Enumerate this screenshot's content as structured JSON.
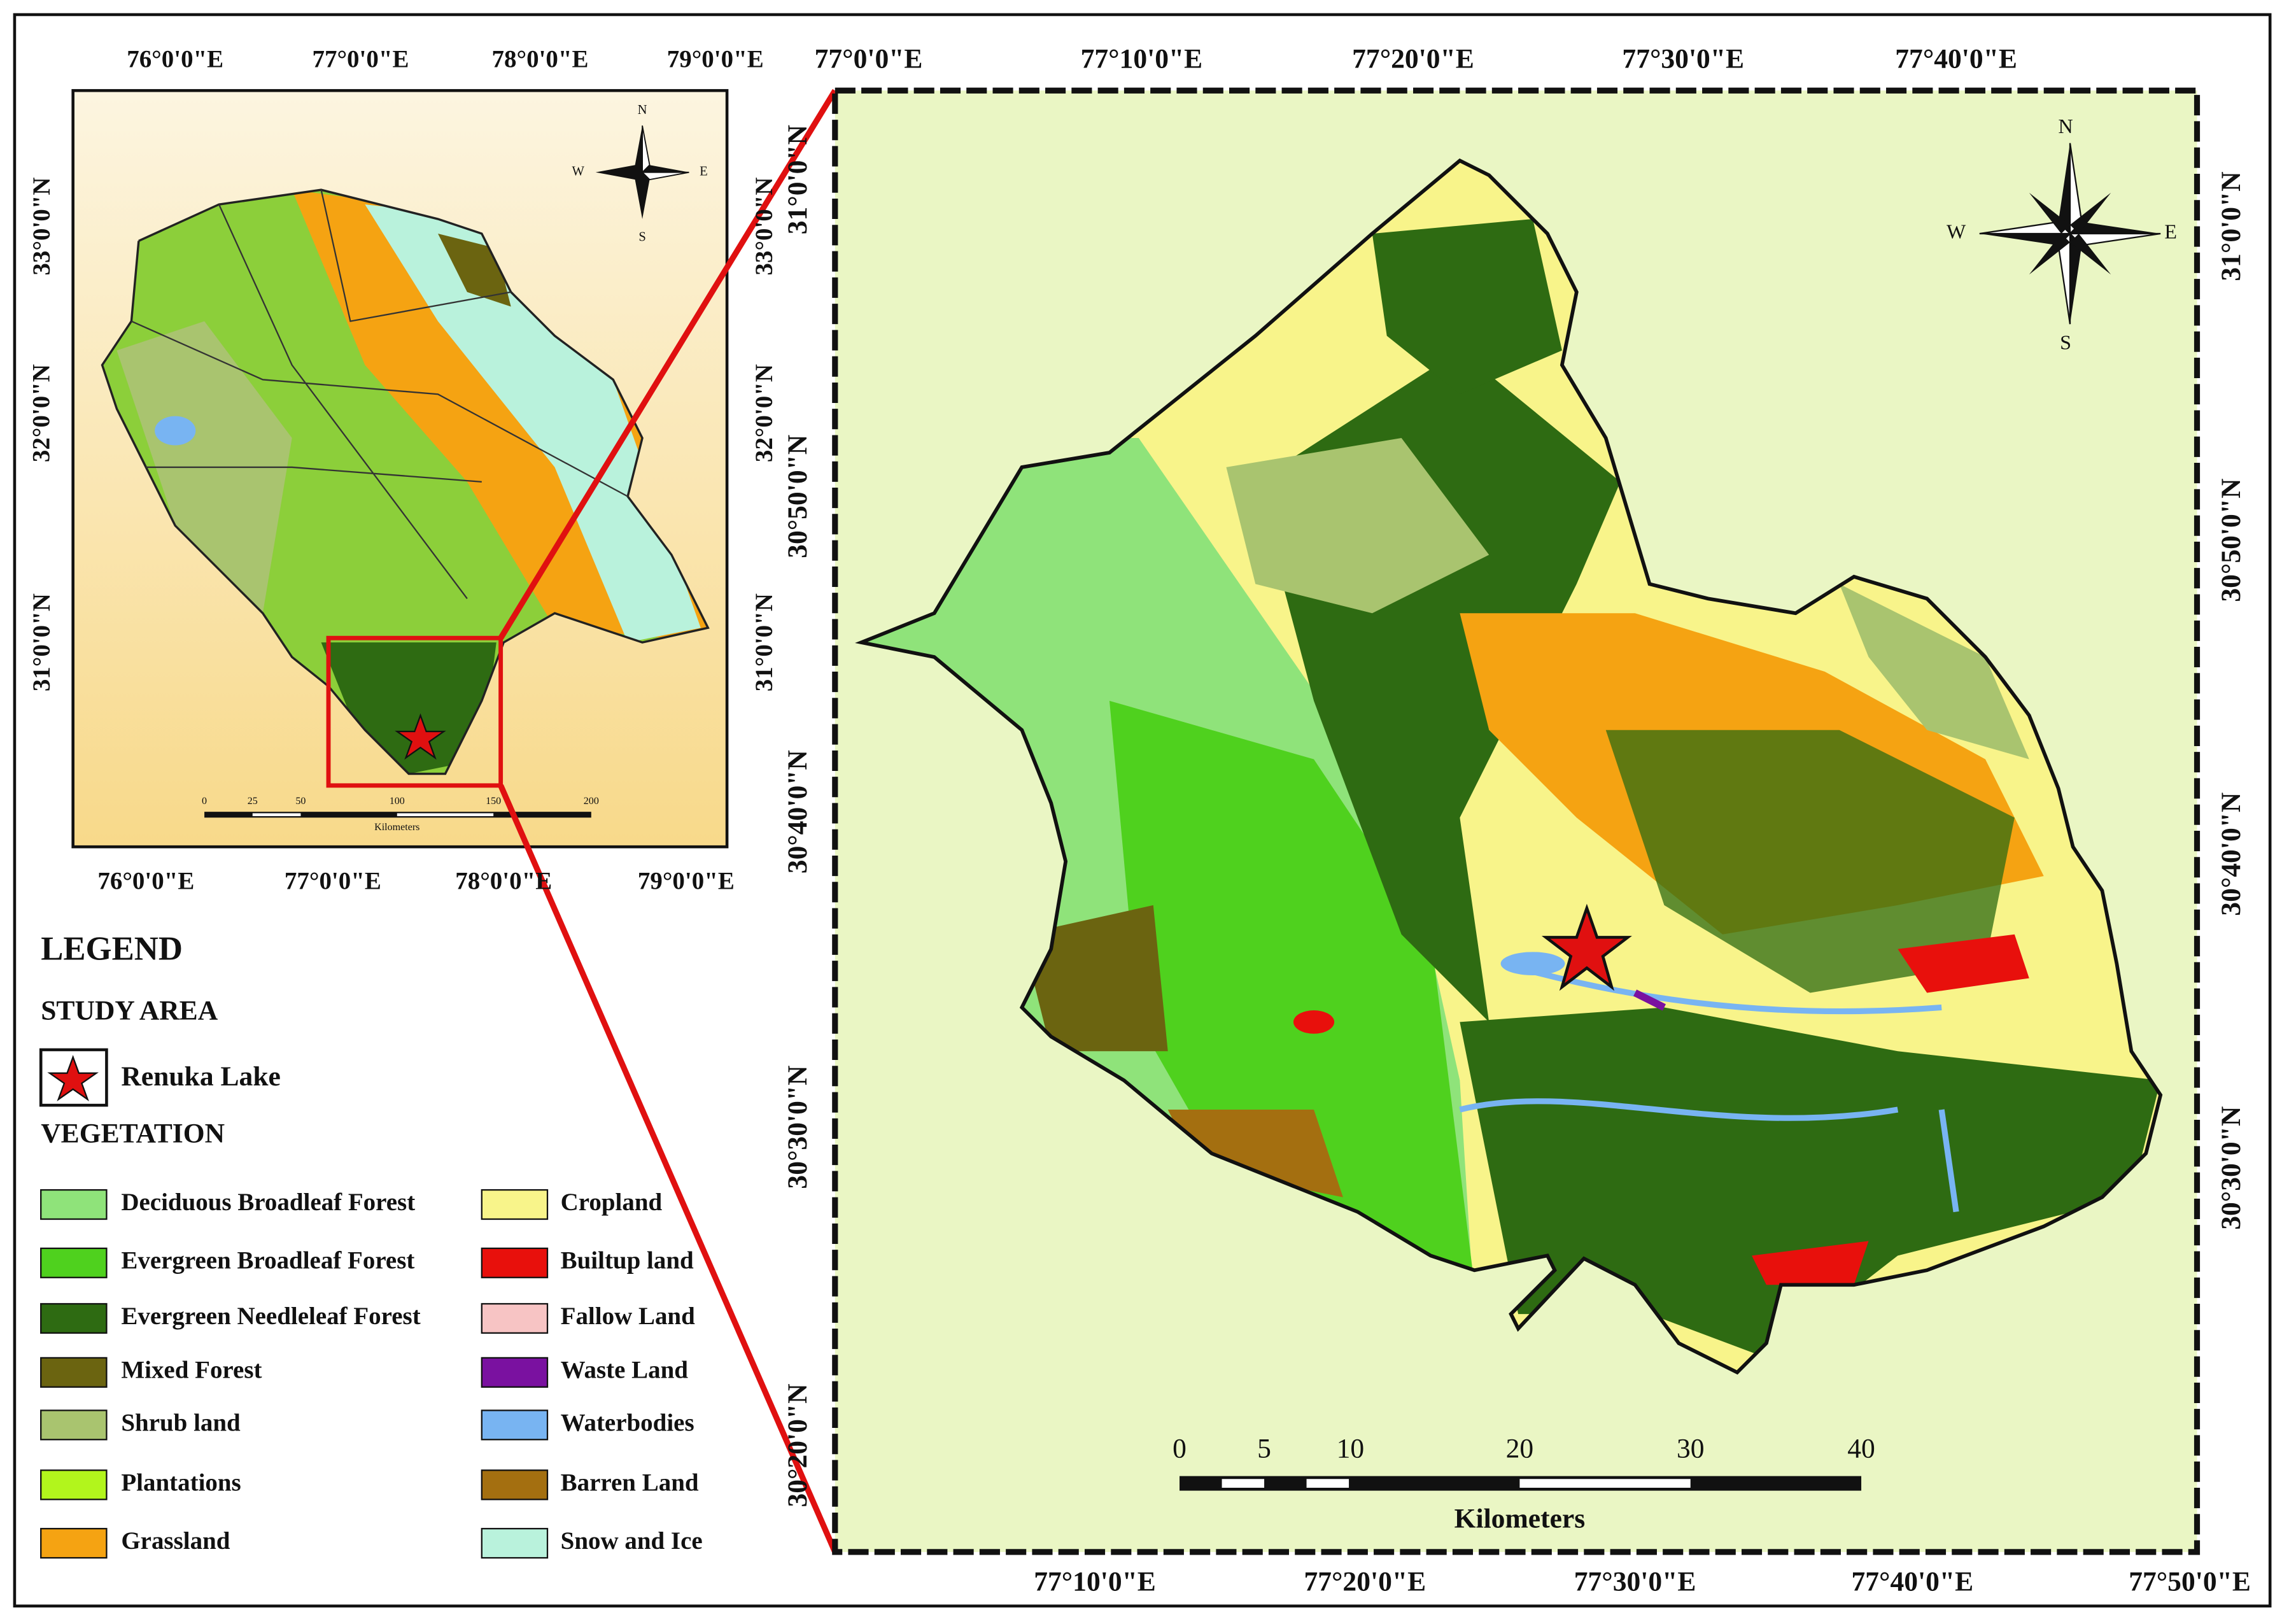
{
  "inset": {
    "top_labels": [
      "76°0'0\"E",
      "77°0'0\"E",
      "78°0'0\"E",
      "79°0'0\"E"
    ],
    "bottom_labels": [
      "76°0'0\"E",
      "77°0'0\"E",
      "78°0'0\"E",
      "79°0'0\"E"
    ],
    "left_labels": [
      "33°0'0\"N",
      "32°0'0\"N",
      "31°0'0\"N"
    ],
    "right_labels": [
      "33°0'0\"N",
      "32°0'0\"N",
      "31°0'0\"N"
    ],
    "scale_labels": [
      "0",
      "25",
      "50",
      "100",
      "150",
      "200"
    ],
    "scale_unit": "Kilometers",
    "compass": {
      "n": "N",
      "e": "E",
      "s": "S",
      "w": "W"
    }
  },
  "main": {
    "top_labels": [
      "77°0'0\"E",
      "77°10'0\"E",
      "77°20'0\"E",
      "77°30'0\"E",
      "77°40'0\"E"
    ],
    "bottom_labels": [
      "77°10'0\"E",
      "77°20'0\"E",
      "77°30'0\"E",
      "77°40'0\"E",
      "77°50'0\"E"
    ],
    "left_labels": [
      "31°0'0\"N",
      "30°50'0\"N",
      "30°40'0\"N",
      "30°30'0\"N",
      "30°20'0\"N"
    ],
    "right_labels": [
      "31°0'0\"N",
      "30°50'0\"N",
      "30°40'0\"N",
      "30°30'0\"N"
    ],
    "scale_labels": [
      "0",
      "5",
      "10",
      "20",
      "30",
      "40"
    ],
    "scale_unit": "Kilometers",
    "compass": {
      "n": "N",
      "e": "E",
      "s": "S",
      "w": "W"
    }
  },
  "legend": {
    "title": "LEGEND",
    "study_area": "STUDY AREA",
    "site": "Renuka Lake",
    "vegetation": "VEGETATION",
    "items": [
      {
        "label": "Deciduous Broadleaf Forest",
        "color": "#8fe37a"
      },
      {
        "label": "Evergreen Broadleaf Forest",
        "color": "#4fd11e"
      },
      {
        "label": "Evergreen Needleleaf Forest",
        "color": "#2e6b12"
      },
      {
        "label": "Mixed Forest",
        "color": "#6b6410"
      },
      {
        "label": "Shrub land",
        "color": "#a9c46f"
      },
      {
        "label": "Plantations",
        "color": "#b2f51c"
      },
      {
        "label": "Grassland",
        "color": "#f5a312"
      },
      {
        "label": "Cropland",
        "color": "#f8f48a"
      },
      {
        "label": "Builtup land",
        "color": "#e8100c"
      },
      {
        "label": "Fallow Land",
        "color": "#f7c4c4"
      },
      {
        "label": "Waste Land",
        "color": "#7a11a0"
      },
      {
        "label": "Waterbodies",
        "color": "#78b4f2"
      },
      {
        "label": "Barren Land",
        "color": "#a46f10"
      },
      {
        "label": "Snow and Ice",
        "color": "#b9f2dc"
      }
    ]
  }
}
